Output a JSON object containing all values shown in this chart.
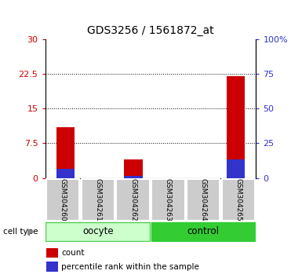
{
  "title": "GDS3256 / 1561872_at",
  "samples": [
    "GSM304260",
    "GSM304261",
    "GSM304262",
    "GSM304263",
    "GSM304264",
    "GSM304265"
  ],
  "red_values": [
    11.0,
    0.0,
    4.0,
    0.0,
    0.0,
    22.0
  ],
  "blue_values": [
    2.0,
    0.0,
    0.5,
    0.0,
    0.0,
    4.0
  ],
  "left_ylim": [
    0,
    30
  ],
  "left_yticks": [
    0,
    7.5,
    15,
    22.5,
    30
  ],
  "right_ylim": [
    0,
    100
  ],
  "right_yticks": [
    0,
    25,
    50,
    75,
    100
  ],
  "right_yticklabels": [
    "0",
    "25",
    "50",
    "75",
    "100%"
  ],
  "left_yticklabels": [
    "0",
    "7.5",
    "15",
    "22.5",
    "30"
  ],
  "bar_color_red": "#cc0000",
  "bar_color_blue": "#3333cc",
  "oocyte_color_light": "#ccffcc",
  "oocyte_color_dark": "#55cc55",
  "control_color": "#33cc33",
  "sample_bg_color": "#cccccc",
  "bar_width": 0.55,
  "legend_count_label": "count",
  "legend_pct_label": "percentile rank within the sample",
  "cell_type_label": "cell type",
  "oocyte_label": "oocyte",
  "control_label": "control",
  "title_fontsize": 10,
  "tick_fontsize": 8,
  "sample_fontsize": 6.5
}
